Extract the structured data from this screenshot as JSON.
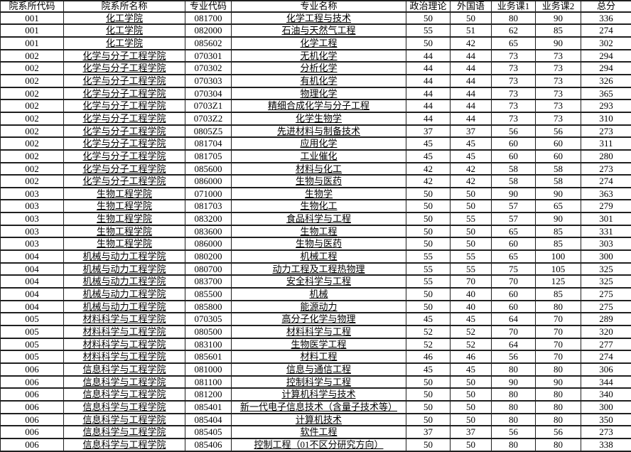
{
  "table": {
    "columns": [
      "院系所代码",
      "院系所名称",
      "专业代码",
      "专业名称",
      "政治理论",
      "外国语",
      "业务课1",
      "业务课2",
      "总分"
    ],
    "rows": [
      [
        "001",
        "化工学院",
        "081700",
        "化学工程与技术",
        "50",
        "50",
        "80",
        "90",
        "336"
      ],
      [
        "001",
        "化工学院",
        "082000",
        "石油与天然气工程",
        "55",
        "51",
        "62",
        "85",
        "274"
      ],
      [
        "001",
        "化工学院",
        "085602",
        "化学工程",
        "50",
        "42",
        "65",
        "90",
        "302"
      ],
      [
        "002",
        "化学与分子工程学院",
        "070301",
        "无机化学",
        "44",
        "44",
        "73",
        "73",
        "294"
      ],
      [
        "002",
        "化学与分子工程学院",
        "070302",
        "分析化学",
        "44",
        "44",
        "73",
        "73",
        "294"
      ],
      [
        "002",
        "化学与分子工程学院",
        "070303",
        "有机化学",
        "44",
        "44",
        "73",
        "73",
        "326"
      ],
      [
        "002",
        "化学与分子工程学院",
        "070304",
        "物理化学",
        "44",
        "44",
        "73",
        "73",
        "365"
      ],
      [
        "002",
        "化学与分子工程学院",
        "0703Z1",
        "精细合成化学与分子工程",
        "44",
        "44",
        "73",
        "73",
        "293"
      ],
      [
        "002",
        "化学与分子工程学院",
        "0703Z2",
        "化学生物学",
        "44",
        "44",
        "73",
        "73",
        "310"
      ],
      [
        "002",
        "化学与分子工程学院",
        "0805Z5",
        "先进材料与制备技术",
        "37",
        "37",
        "56",
        "56",
        "273"
      ],
      [
        "002",
        "化学与分子工程学院",
        "081704",
        "应用化学",
        "45",
        "45",
        "60",
        "60",
        "311"
      ],
      [
        "002",
        "化学与分子工程学院",
        "081705",
        "工业催化",
        "45",
        "45",
        "60",
        "60",
        "280"
      ],
      [
        "002",
        "化学与分子工程学院",
        "085600",
        "材料与化工",
        "42",
        "42",
        "58",
        "58",
        "273"
      ],
      [
        "002",
        "化学与分子工程学院",
        "086000",
        "生物与医药",
        "42",
        "42",
        "58",
        "58",
        "274"
      ],
      [
        "003",
        "生物工程学院",
        "071000",
        "生物学",
        "50",
        "50",
        "90",
        "90",
        "363"
      ],
      [
        "003",
        "生物工程学院",
        "081703",
        "生物化工",
        "50",
        "50",
        "57",
        "65",
        "279"
      ],
      [
        "003",
        "生物工程学院",
        "083200",
        "食品科学与工程",
        "50",
        "55",
        "57",
        "90",
        "301"
      ],
      [
        "003",
        "生物工程学院",
        "083600",
        "生物工程",
        "50",
        "50",
        "65",
        "85",
        "331"
      ],
      [
        "003",
        "生物工程学院",
        "086000",
        "生物与医药",
        "50",
        "50",
        "60",
        "85",
        "303"
      ],
      [
        "004",
        "机械与动力工程学院",
        "080200",
        "机械工程",
        "55",
        "55",
        "65",
        "100",
        "300"
      ],
      [
        "004",
        "机械与动力工程学院",
        "080700",
        "动力工程及工程热物理",
        "55",
        "55",
        "75",
        "105",
        "325"
      ],
      [
        "004",
        "机械与动力工程学院",
        "083700",
        "安全科学与工程",
        "55",
        "70",
        "70",
        "125",
        "325"
      ],
      [
        "004",
        "机械与动力工程学院",
        "085500",
        "机械",
        "50",
        "40",
        "60",
        "85",
        "275"
      ],
      [
        "004",
        "机械与动力工程学院",
        "085800",
        "能源动力",
        "50",
        "40",
        "60",
        "80",
        "275"
      ],
      [
        "005",
        "材料科学与工程学院",
        "070305",
        "高分子化学与物理",
        "45",
        "45",
        "64",
        "70",
        "289"
      ],
      [
        "005",
        "材料科学与工程学院",
        "080500",
        "材料科学与工程",
        "52",
        "52",
        "70",
        "70",
        "320"
      ],
      [
        "005",
        "材料科学与工程学院",
        "083100",
        "生物医学工程",
        "52",
        "52",
        "64",
        "70",
        "277"
      ],
      [
        "005",
        "材料科学与工程学院",
        "085601",
        "材料工程",
        "46",
        "46",
        "56",
        "70",
        "274"
      ],
      [
        "006",
        "信息科学与工程学院",
        "081000",
        "信息与通信工程",
        "45",
        "45",
        "80",
        "80",
        "306"
      ],
      [
        "006",
        "信息科学与工程学院",
        "081100",
        "控制科学与工程",
        "50",
        "50",
        "90",
        "90",
        "344"
      ],
      [
        "006",
        "信息科学与工程学院",
        "081200",
        "计算机科学与技术",
        "50",
        "50",
        "80",
        "80",
        "340"
      ],
      [
        "006",
        "信息科学与工程学院",
        "085401",
        "新一代电子信息技术（含量子技术等）",
        "50",
        "50",
        "80",
        "80",
        "300"
      ],
      [
        "006",
        "信息科学与工程学院",
        "085404",
        "计算机技术",
        "50",
        "50",
        "80",
        "80",
        "350"
      ],
      [
        "006",
        "信息科学与工程学院",
        "085405",
        "软件工程",
        "37",
        "37",
        "56",
        "56",
        "273"
      ],
      [
        "006",
        "信息科学与工程学院",
        "085406",
        "控制工程（01不区分研究方向）",
        "50",
        "50",
        "80",
        "80",
        "338"
      ]
    ]
  }
}
